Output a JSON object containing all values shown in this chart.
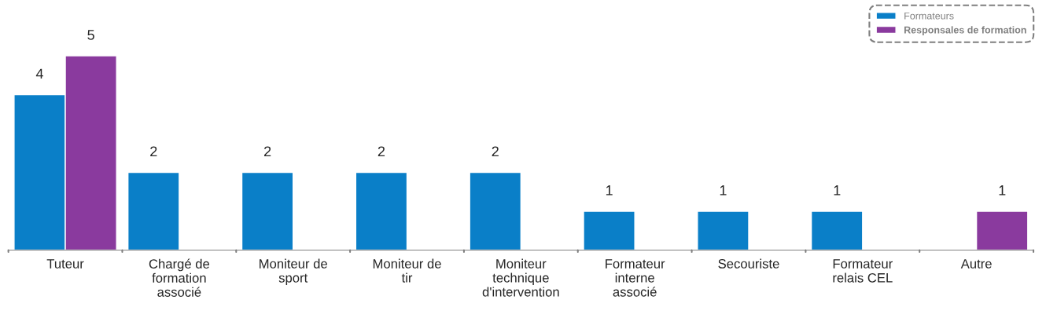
{
  "chart_data": {
    "type": "bar",
    "categories": [
      "Tuteur",
      "Chargé de\nformation\nassocié",
      "Moniteur de\nsport",
      "Moniteur de\ntir",
      "Moniteur\ntechnique\nd'intervention",
      "Formateur\ninterne\nassocié",
      "Secouriste",
      "Formateur\nrelais CEL",
      "Autre"
    ],
    "series": [
      {
        "name": "Formateurs",
        "color": "#0a7fc8",
        "values": [
          4,
          2,
          2,
          2,
          2,
          1,
          1,
          1,
          null
        ]
      },
      {
        "name": "Responsales de formation",
        "color": "#8a3a9e",
        "values": [
          5,
          null,
          null,
          null,
          null,
          null,
          null,
          null,
          1
        ]
      }
    ],
    "data_labels": true,
    "grid": false,
    "legend": "top right"
  }
}
